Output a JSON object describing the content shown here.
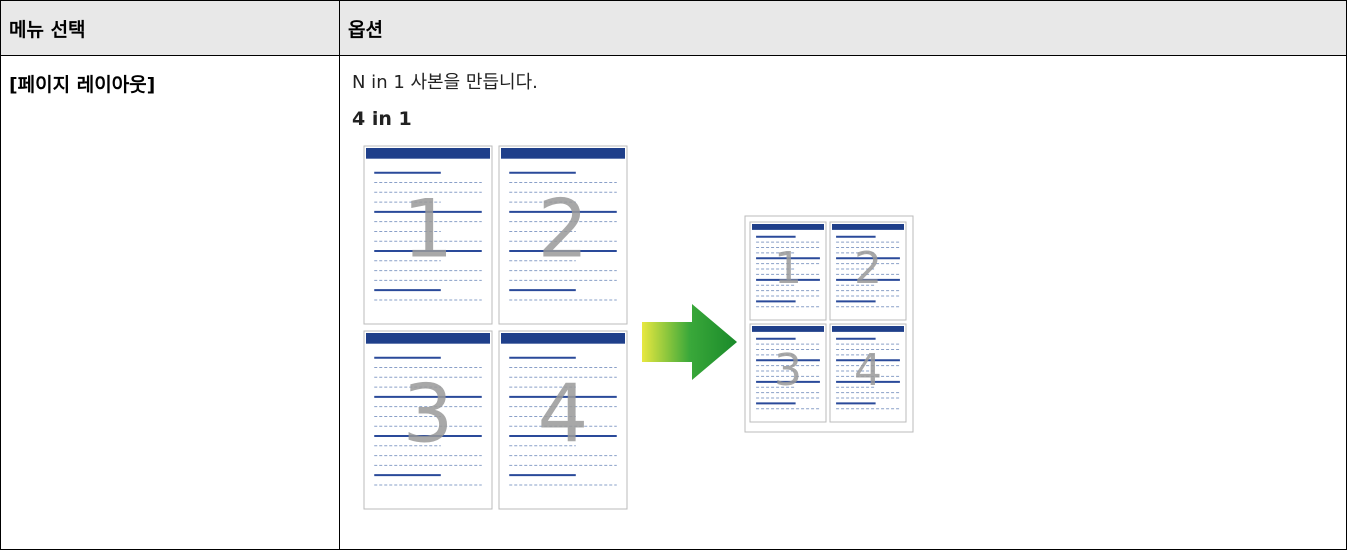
{
  "table": {
    "header": [
      "메뉴 선택",
      "옵션"
    ],
    "rows": [
      {
        "menu": "[페이지 레이아웃]",
        "description": "N in 1 사본을 만듭니다.",
        "option": "4 in 1",
        "illustration": {
          "page_numbers": [
            "1",
            "2",
            "3",
            "4"
          ]
        }
      }
    ]
  }
}
